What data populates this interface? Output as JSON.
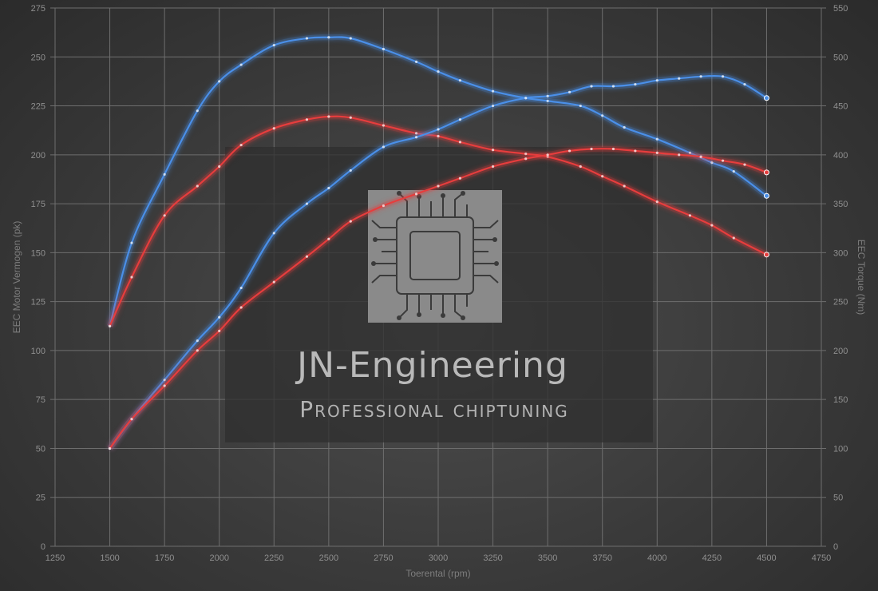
{
  "watermark": {
    "title": "JN-Engineering",
    "subtitle": "Professional chiptuning"
  },
  "colors": {
    "tuned": "#4a8fe8",
    "stock": "#e63d3d",
    "grid": "#6e6e6e",
    "background": "#3d3d3d"
  },
  "chart_data": {
    "type": "line",
    "grid": true,
    "xlabel": "Toerental (rpm)",
    "ylabel": "EEC Motor Vermogen (pk)",
    "y2label": "EEC Torque (Nm)",
    "xlim": [
      1250,
      4750
    ],
    "ylim": [
      0,
      275
    ],
    "y2lim": [
      0,
      550
    ],
    "x_ticks": [
      1250,
      1500,
      1750,
      2000,
      2250,
      2500,
      2750,
      3000,
      3250,
      3500,
      3750,
      4000,
      4250,
      4500,
      4750
    ],
    "y_ticks": [
      0,
      25,
      50,
      75,
      100,
      125,
      150,
      175,
      200,
      225,
      250,
      275
    ],
    "y2_ticks": [
      0,
      50,
      100,
      150,
      200,
      250,
      300,
      350,
      400,
      450,
      500,
      550
    ],
    "series": [
      {
        "axis": "right",
        "color": "#4a8fe8",
        "x": [
          1500,
          1600,
          1750,
          1900,
          2000,
          2100,
          2250,
          2400,
          2500,
          2600,
          2750,
          2900,
          3000,
          3100,
          3250,
          3400,
          3500,
          3650,
          3750,
          3850,
          4000,
          4150,
          4250,
          4350,
          4500
        ],
        "values": [
          225,
          310,
          380,
          445,
          475,
          492,
          512,
          519,
          520,
          519,
          508,
          495,
          485,
          476,
          465,
          458,
          455,
          450,
          440,
          428,
          416,
          402,
          392,
          383,
          358
        ]
      },
      {
        "axis": "right",
        "color": "#e63d3d",
        "x": [
          1500,
          1600,
          1750,
          1900,
          2000,
          2100,
          2250,
          2400,
          2500,
          2600,
          2750,
          2900,
          3000,
          3100,
          3250,
          3400,
          3500,
          3650,
          3750,
          3850,
          4000,
          4150,
          4250,
          4350,
          4500
        ],
        "values": [
          225,
          275,
          338,
          368,
          388,
          410,
          427,
          436,
          439,
          438,
          430,
          422,
          419,
          413,
          405,
          401,
          398,
          388,
          378,
          368,
          352,
          338,
          328,
          315,
          298
        ]
      },
      {
        "axis": "left",
        "color": "#4a8fe8",
        "x": [
          1500,
          1600,
          1750,
          1900,
          2000,
          2100,
          2250,
          2400,
          2500,
          2600,
          2750,
          2900,
          3000,
          3100,
          3250,
          3400,
          3500,
          3600,
          3700,
          3800,
          3900,
          4000,
          4100,
          4200,
          4300,
          4400,
          4500
        ],
        "values": [
          50,
          65,
          85,
          105,
          117,
          132,
          160,
          175,
          183,
          192,
          204,
          209,
          213,
          218,
          225,
          229,
          230,
          232,
          235,
          235,
          236,
          238,
          239,
          240,
          240,
          236,
          229
        ]
      },
      {
        "axis": "left",
        "color": "#e63d3d",
        "x": [
          1500,
          1600,
          1750,
          1900,
          2000,
          2100,
          2250,
          2400,
          2500,
          2600,
          2750,
          2900,
          3000,
          3100,
          3250,
          3400,
          3500,
          3600,
          3700,
          3800,
          3900,
          4000,
          4100,
          4200,
          4300,
          4400,
          4500
        ],
        "values": [
          50,
          65,
          82,
          100,
          110,
          122,
          135,
          148,
          157,
          166,
          174,
          180,
          184,
          188,
          194,
          198,
          200,
          202,
          203,
          203,
          202,
          201,
          200,
          199,
          197,
          195,
          191
        ]
      }
    ]
  }
}
